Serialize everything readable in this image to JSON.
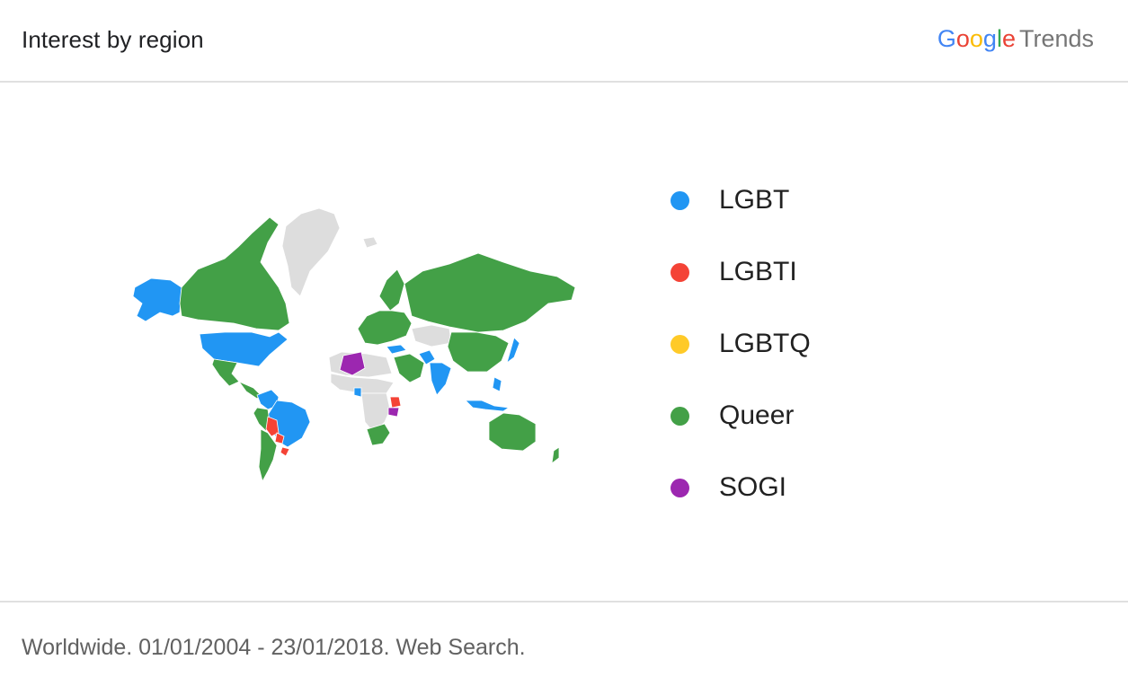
{
  "header": {
    "title": "Interest by region",
    "brand": {
      "letters": [
        "G",
        "o",
        "o",
        "g",
        "l",
        "e"
      ],
      "product": "Trends"
    }
  },
  "legend": {
    "items": [
      {
        "label": "LGBT",
        "color": "#2196F3"
      },
      {
        "label": "LGBTI",
        "color": "#F44336"
      },
      {
        "label": "LGBTQ",
        "color": "#FFCA28"
      },
      {
        "label": "Queer",
        "color": "#43A047"
      },
      {
        "label": "SOGI",
        "color": "#9C27B0"
      }
    ]
  },
  "map": {
    "no_data_color": "#DDDDDD",
    "regions": [
      {
        "region": "Alaska",
        "term": "LGBT"
      },
      {
        "region": "United States",
        "term": "LGBT"
      },
      {
        "region": "Canada",
        "term": "Queer"
      },
      {
        "region": "Greenland",
        "term": "none"
      },
      {
        "region": "Mexico",
        "term": "Queer"
      },
      {
        "region": "Central America",
        "term": "Queer"
      },
      {
        "region": "Brazil",
        "term": "LGBT"
      },
      {
        "region": "Colombia",
        "term": "LGBT"
      },
      {
        "region": "Bolivia",
        "term": "LGBTI"
      },
      {
        "region": "Paraguay",
        "term": "LGBTI"
      },
      {
        "region": "Peru",
        "term": "Queer"
      },
      {
        "region": "Chile / Argentina",
        "term": "Queer"
      },
      {
        "region": "Uruguay",
        "term": "LGBTI"
      },
      {
        "region": "Iceland",
        "term": "none"
      },
      {
        "region": "Europe",
        "term": "Queer"
      },
      {
        "region": "Scandinavia",
        "term": "Queer"
      },
      {
        "region": "Russia",
        "term": "Queer"
      },
      {
        "region": "Kazakhstan",
        "term": "none"
      },
      {
        "region": "Algeria",
        "term": "SOGI"
      },
      {
        "region": "North Africa",
        "term": "none"
      },
      {
        "region": "Sahel",
        "term": "none"
      },
      {
        "region": "Ghana",
        "term": "LGBT"
      },
      {
        "region": "Central Africa",
        "term": "none"
      },
      {
        "region": "Kenya",
        "term": "LGBTI"
      },
      {
        "region": "Tanzania",
        "term": "SOGI"
      },
      {
        "region": "Southern Africa",
        "term": "Queer"
      },
      {
        "region": "Middle East",
        "term": "Queer"
      },
      {
        "region": "Turkey",
        "term": "LGBT"
      },
      {
        "region": "Pakistan",
        "term": "LGBT"
      },
      {
        "region": "India",
        "term": "LGBT"
      },
      {
        "region": "China",
        "term": "Queer"
      },
      {
        "region": "Japan",
        "term": "LGBT"
      },
      {
        "region": "Philippines",
        "term": "LGBT"
      },
      {
        "region": "Indonesia",
        "term": "LGBT"
      },
      {
        "region": "Australia",
        "term": "Queer"
      },
      {
        "region": "New Zealand",
        "term": "Queer"
      }
    ]
  },
  "footer": {
    "text": "Worldwide. 01/01/2004 - 23/01/2018. Web Search."
  }
}
